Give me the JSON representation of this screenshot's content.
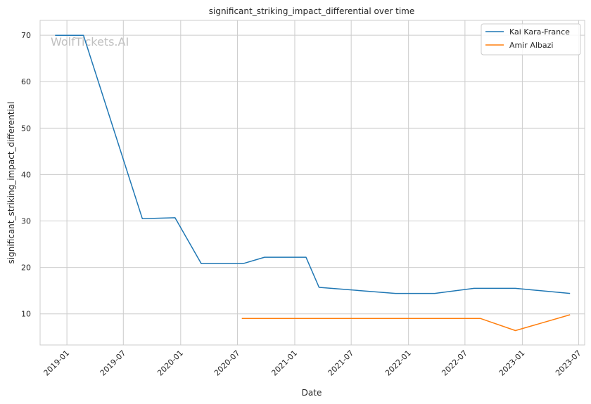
{
  "watermark": "WolfTickets.AI",
  "chart_data": {
    "type": "line",
    "title": "significant_striking_impact_differential over time",
    "xlabel": "Date",
    "ylabel": "significant_striking_impact_differential",
    "x_tick_labels": [
      "2019-01",
      "2019-07",
      "2020-01",
      "2020-07",
      "2021-01",
      "2021-07",
      "2022-01",
      "2022-07",
      "2023-01",
      "2023-07"
    ],
    "x_tick_dates": [
      "2019-01-01",
      "2019-07-01",
      "2020-01-01",
      "2020-07-01",
      "2021-01-01",
      "2021-07-01",
      "2022-01-01",
      "2022-07-01",
      "2023-01-01",
      "2023-07-01"
    ],
    "y_ticks": [
      10,
      20,
      30,
      40,
      50,
      60,
      70
    ],
    "xlim": [
      "2018-10-07",
      "2023-07-20"
    ],
    "ylim": [
      3.3,
      73.2
    ],
    "grid": true,
    "legend_position": "top-right",
    "series": [
      {
        "name": "Kai Kara-France",
        "color": "#1f77b4",
        "x": [
          "2018-11-24",
          "2019-02-23",
          "2019-08-31",
          "2019-12-14",
          "2020-03-07",
          "2020-07-18",
          "2020-09-26",
          "2021-02-06",
          "2021-03-20",
          "2021-11-20",
          "2022-03-26",
          "2022-07-30",
          "2022-12-10",
          "2023-06-03"
        ],
        "y": [
          70.0,
          70.0,
          30.5,
          30.7,
          20.8,
          20.8,
          22.2,
          22.2,
          15.7,
          14.4,
          14.4,
          15.5,
          15.5,
          14.4
        ]
      },
      {
        "name": "Amir Albazi",
        "color": "#ff7f0e",
        "x": [
          "2020-07-15",
          "2022-08-20",
          "2022-12-10",
          "2023-06-03"
        ],
        "y": [
          9.0,
          9.0,
          6.4,
          9.8
        ]
      }
    ]
  }
}
